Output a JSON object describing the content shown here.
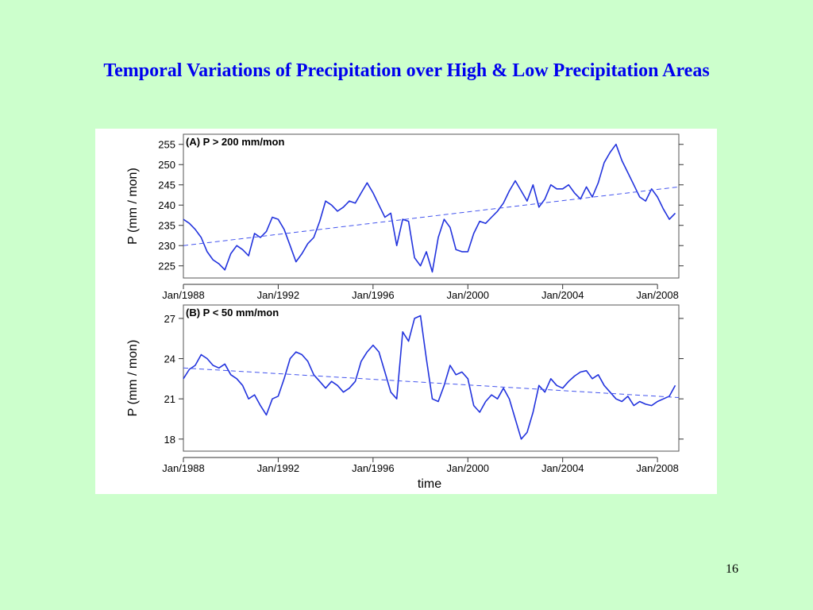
{
  "slide": {
    "title": "Temporal Variations of Precipitation over High & Low Precipitation Areas",
    "page_number": "16"
  },
  "colors": {
    "background": "#ccffcc",
    "title": "#0000ee",
    "series": "#2233dd",
    "trend": "#4455ee"
  },
  "chart_data": [
    {
      "type": "line",
      "panel_label": "(A) P > 200 mm/mon",
      "xlabel": "",
      "ylabel": "P  (mm / mon)",
      "xlim": [
        1988.0,
        2008.9
      ],
      "ylim": [
        222.0,
        257.5
      ],
      "x_ticks": [
        "Jan/1988",
        "Jan/1992",
        "Jan/1996",
        "Jan/2000",
        "Jan/2004",
        "Jan/2008"
      ],
      "x_tick_years": [
        1988,
        1992,
        1996,
        2000,
        2004,
        2008
      ],
      "y_ticks": [
        225,
        230,
        235,
        240,
        245,
        250,
        255
      ],
      "series": [
        {
          "style": "solid",
          "x": [
            1988.0,
            1988.25,
            1988.5,
            1988.75,
            1989.0,
            1989.25,
            1989.5,
            1989.75,
            1990.0,
            1990.25,
            1990.5,
            1990.75,
            1991.0,
            1991.25,
            1991.5,
            1991.75,
            1992.0,
            1992.25,
            1992.5,
            1992.75,
            1993.0,
            1993.25,
            1993.5,
            1993.75,
            1994.0,
            1994.25,
            1994.5,
            1994.75,
            1995.0,
            1995.25,
            1995.5,
            1995.75,
            1996.0,
            1996.25,
            1996.5,
            1996.75,
            1997.0,
            1997.25,
            1997.5,
            1997.75,
            1998.0,
            1998.25,
            1998.5,
            1998.75,
            1999.0,
            1999.25,
            1999.5,
            1999.75,
            2000.0,
            2000.25,
            2000.5,
            2000.75,
            2001.0,
            2001.25,
            2001.5,
            2001.75,
            2002.0,
            2002.25,
            2002.5,
            2002.75,
            2003.0,
            2003.25,
            2003.5,
            2003.75,
            2004.0,
            2004.25,
            2004.5,
            2004.75,
            2005.0,
            2005.25,
            2005.5,
            2005.75,
            2006.0,
            2006.25,
            2006.5,
            2006.75,
            2007.0,
            2007.25,
            2007.5,
            2007.75,
            2008.0,
            2008.25,
            2008.5,
            2008.75
          ],
          "y": [
            236.5,
            235.5,
            234.0,
            232.0,
            228.5,
            226.5,
            225.5,
            224.0,
            228.0,
            230.0,
            229.0,
            227.5,
            233.0,
            232.0,
            233.5,
            237.0,
            236.5,
            234.0,
            230.0,
            226.0,
            228.0,
            230.5,
            232.0,
            236.0,
            241.0,
            240.0,
            238.5,
            239.5,
            241.0,
            240.5,
            243.0,
            245.5,
            243.0,
            240.0,
            237.0,
            238.0,
            230.0,
            236.5,
            236.0,
            227.0,
            225.0,
            228.5,
            223.5,
            232.0,
            236.5,
            234.5,
            229.0,
            228.5,
            228.5,
            233.0,
            236.0,
            235.5,
            237.0,
            238.5,
            240.5,
            243.5,
            246.0,
            243.5,
            241.0,
            245.0,
            239.5,
            241.5,
            245.0,
            244.0,
            244.0,
            245.0,
            243.0,
            241.5,
            244.5,
            242.0,
            245.5,
            250.5,
            253.0,
            255.0,
            251.0,
            248.0,
            245.0,
            242.0,
            241.0,
            244.0,
            242.0,
            239.0,
            236.5,
            238.0
          ]
        },
        {
          "style": "dashed",
          "name_hint": "linear trend",
          "x": [
            1988.0,
            2008.9
          ],
          "y": [
            230.0,
            244.5
          ]
        }
      ]
    },
    {
      "type": "line",
      "panel_label": "(B) P < 50 mm/mon",
      "xlabel": "time",
      "ylabel": "P  (mm / mon)",
      "xlim": [
        1988.0,
        2008.9
      ],
      "ylim": [
        17.1,
        28.0
      ],
      "x_ticks": [
        "Jan/1988",
        "Jan/1992",
        "Jan/1996",
        "Jan/2000",
        "Jan/2004",
        "Jan/2008"
      ],
      "x_tick_years": [
        1988,
        1992,
        1996,
        2000,
        2004,
        2008
      ],
      "y_ticks": [
        18,
        21,
        24,
        27
      ],
      "series": [
        {
          "style": "solid",
          "x": [
            1988.0,
            1988.25,
            1988.5,
            1988.75,
            1989.0,
            1989.25,
            1989.5,
            1989.75,
            1990.0,
            1990.25,
            1990.5,
            1990.75,
            1991.0,
            1991.25,
            1991.5,
            1991.75,
            1992.0,
            1992.25,
            1992.5,
            1992.75,
            1993.0,
            1993.25,
            1993.5,
            1993.75,
            1994.0,
            1994.25,
            1994.5,
            1994.75,
            1995.0,
            1995.25,
            1995.5,
            1995.75,
            1996.0,
            1996.25,
            1996.5,
            1996.75,
            1997.0,
            1997.25,
            1997.5,
            1997.75,
            1998.0,
            1998.25,
            1998.5,
            1998.75,
            1999.0,
            1999.25,
            1999.5,
            1999.75,
            2000.0,
            2000.25,
            2000.5,
            2000.75,
            2001.0,
            2001.25,
            2001.5,
            2001.75,
            2002.0,
            2002.25,
            2002.5,
            2002.75,
            2003.0,
            2003.25,
            2003.5,
            2003.75,
            2004.0,
            2004.25,
            2004.5,
            2004.75,
            2005.0,
            2005.25,
            2005.5,
            2005.75,
            2006.0,
            2006.25,
            2006.5,
            2006.75,
            2007.0,
            2007.25,
            2007.5,
            2007.75,
            2008.0,
            2008.25,
            2008.5,
            2008.75
          ],
          "y": [
            22.5,
            23.2,
            23.5,
            24.3,
            24.0,
            23.5,
            23.3,
            23.6,
            22.8,
            22.5,
            22.0,
            21.0,
            21.3,
            20.5,
            19.8,
            21.0,
            21.2,
            22.5,
            24.0,
            24.5,
            24.3,
            23.8,
            22.8,
            22.3,
            21.8,
            22.3,
            22.0,
            21.5,
            21.8,
            22.3,
            23.8,
            24.5,
            25.0,
            24.5,
            23.0,
            21.5,
            21.0,
            26.0,
            25.3,
            27.0,
            27.2,
            24.0,
            21.0,
            20.8,
            22.0,
            23.5,
            22.8,
            23.0,
            22.5,
            20.5,
            20.0,
            20.8,
            21.3,
            21.0,
            21.8,
            21.0,
            19.5,
            18.0,
            18.5,
            20.0,
            22.0,
            21.5,
            22.5,
            22.0,
            21.8,
            22.3,
            22.7,
            23.0,
            23.1,
            22.5,
            22.8,
            22.0,
            21.5,
            21.0,
            20.8,
            21.2,
            20.5,
            20.8,
            20.6,
            20.5,
            20.8,
            21.0,
            21.2,
            22.0
          ]
        },
        {
          "style": "dashed",
          "name_hint": "linear trend",
          "x": [
            1988.0,
            2008.9
          ],
          "y": [
            23.3,
            21.1
          ]
        }
      ]
    }
  ]
}
